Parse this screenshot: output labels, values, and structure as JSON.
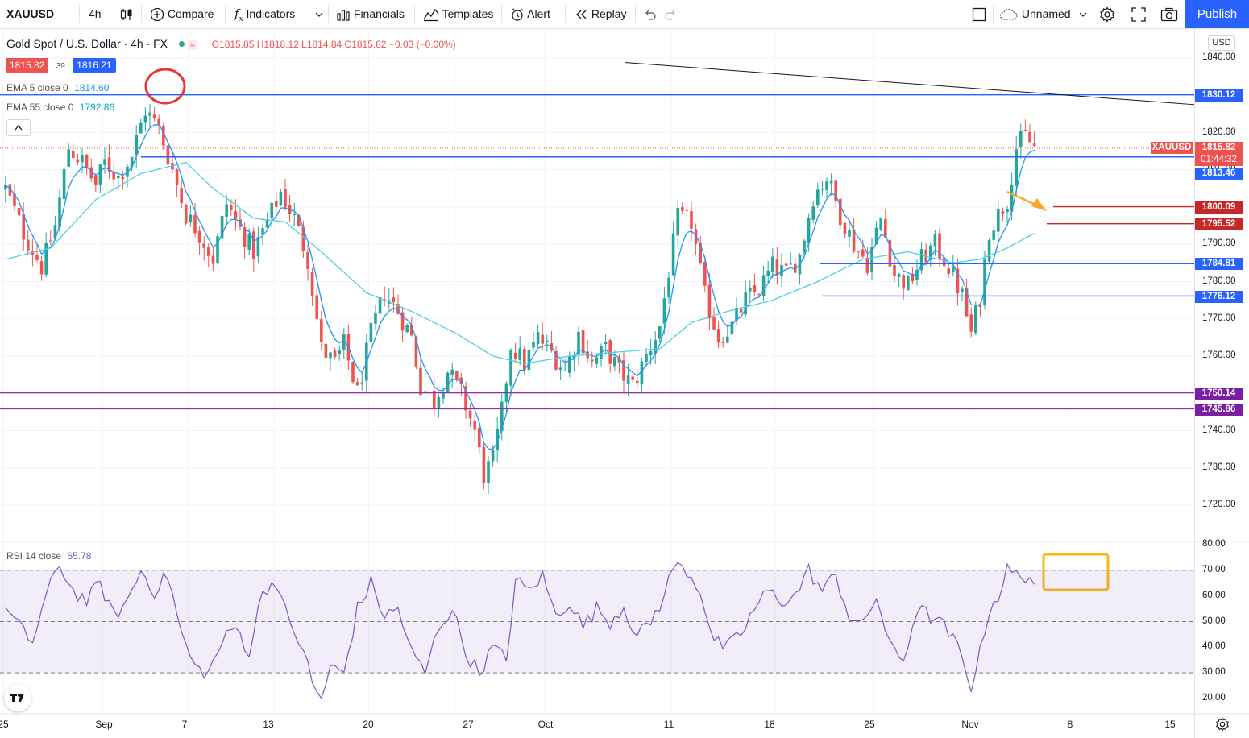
{
  "toolbar": {
    "symbol": "XAUUSD",
    "interval": "4h",
    "compare": "Compare",
    "indicators": "Indicators",
    "financials": "Financials",
    "templates": "Templates",
    "alert": "Alert",
    "replay": "Replay",
    "layout_name": "Unnamed",
    "publish": "Publish"
  },
  "legend": {
    "title": "Gold Spot / U.S. Dollar · 4h · FX",
    "open": "O1815.85",
    "high": "H1818.12",
    "low": "L1814.84",
    "close": "C1815.82",
    "change": "−0.03 (−0.00%)",
    "bid": "1815.82",
    "spread": "39",
    "ask": "1816.21",
    "ema5_label": "EMA 5 close 0",
    "ema5_value": "1814.60",
    "ema55_label": "EMA 55 close 0",
    "ema55_value": "1792.86",
    "rsi_label": "RSI 14 close",
    "rsi_value": "65.78",
    "currency": "USD"
  },
  "price_labels": {
    "lvl_1830": "1830.12",
    "xauusd_tag": "XAUUSD",
    "last_price": "1815.82",
    "countdown": "01:44:32",
    "lvl_1813": "1813.46",
    "lvl_1800": "1800.09",
    "lvl_1795": "1795.52",
    "lvl_1784": "1784.81",
    "lvl_1776": "1776.12",
    "lvl_1750": "1750.14",
    "lvl_1745": "1745.86"
  },
  "colors": {
    "up": "#26a69a",
    "down": "#ef5350",
    "ema5": "#2196f3",
    "ema55": "#4dd0e1",
    "rsi": "#7e57c2",
    "blue_level": "#2962ff",
    "red_level": "#c62828",
    "purple_level": "#9c27b0"
  },
  "chart_data": [
    {
      "type": "candlestick",
      "symbol": "XAUUSD",
      "interval": "4h",
      "ylim": [
        1715,
        1845
      ],
      "y_ticks": [
        1840,
        1830,
        1820,
        1810,
        1800,
        1790,
        1780,
        1770,
        1760,
        1750,
        1740,
        1730,
        1720
      ],
      "y_tick_labels": [
        "1840.00",
        "1830.00",
        "1820.00",
        "1810.00",
        "1800.00",
        "1790.00",
        "1780.00",
        "1770.00",
        "1760.00",
        "1750.00",
        "1740.00",
        "1730.00",
        "1720.00"
      ],
      "x_tick_labels": [
        "25",
        "Sep",
        "7",
        "13",
        "20",
        "27",
        "Oct",
        "11",
        "18",
        "25",
        "Nov",
        "8",
        "15"
      ],
      "close_path": [
        [
          0,
          1805
        ],
        [
          4,
          1793
        ],
        [
          8,
          1784
        ],
        [
          11,
          1795
        ],
        [
          14,
          1816
        ],
        [
          17,
          1812
        ],
        [
          20,
          1806
        ],
        [
          22,
          1812
        ],
        [
          25,
          1808
        ],
        [
          28,
          1814
        ],
        [
          31,
          1826
        ],
        [
          34,
          1821
        ],
        [
          37,
          1810
        ],
        [
          40,
          1798
        ],
        [
          43,
          1793
        ],
        [
          46,
          1786
        ],
        [
          49,
          1801
        ],
        [
          52,
          1794
        ],
        [
          55,
          1788
        ],
        [
          58,
          1796
        ],
        [
          61,
          1804
        ],
        [
          64,
          1797
        ],
        [
          67,
          1786
        ],
        [
          70,
          1762
        ],
        [
          73,
          1758
        ],
        [
          75,
          1763
        ],
        [
          78,
          1750
        ],
        [
          81,
          1766
        ],
        [
          84,
          1777
        ],
        [
          87,
          1772
        ],
        [
          90,
          1765
        ],
        [
          92,
          1752
        ],
        [
          95,
          1748
        ],
        [
          98,
          1756
        ],
        [
          101,
          1750
        ],
        [
          104,
          1740
        ],
        [
          106,
          1728
        ],
        [
          108,
          1732
        ],
        [
          110,
          1745
        ],
        [
          112,
          1763
        ],
        [
          115,
          1758
        ],
        [
          118,
          1765
        ],
        [
          121,
          1761
        ],
        [
          124,
          1756
        ],
        [
          127,
          1766
        ],
        [
          130,
          1758
        ],
        [
          133,
          1762
        ],
        [
          136,
          1756
        ],
        [
          139,
          1752
        ],
        [
          142,
          1760
        ],
        [
          145,
          1768
        ],
        [
          147,
          1783
        ],
        [
          149,
          1797
        ],
        [
          152,
          1796
        ],
        [
          155,
          1776
        ],
        [
          158,
          1765
        ],
        [
          161,
          1768
        ],
        [
          164,
          1775
        ],
        [
          167,
          1778
        ],
        [
          170,
          1784
        ],
        [
          173,
          1782
        ],
        [
          176,
          1787
        ],
        [
          179,
          1803
        ],
        [
          182,
          1808
        ],
        [
          185,
          1798
        ],
        [
          188,
          1790
        ],
        [
          191,
          1785
        ],
        [
          194,
          1797
        ],
        [
          197,
          1782
        ],
        [
          200,
          1779
        ],
        [
          203,
          1786
        ],
        [
          206,
          1790
        ],
        [
          209,
          1784
        ],
        [
          212,
          1776
        ],
        [
          214,
          1766
        ],
        [
          216,
          1776
        ],
        [
          218,
          1794
        ],
        [
          220,
          1798
        ],
        [
          222,
          1802
        ],
        [
          224,
          1816
        ],
        [
          226,
          1819
        ],
        [
          228,
          1816
        ]
      ],
      "ema5_label": "EMA 5 close 0",
      "ema55_label": "EMA 55 close 0",
      "ema55_path": [
        [
          0,
          1786
        ],
        [
          10,
          1789
        ],
        [
          20,
          1802
        ],
        [
          30,
          1809
        ],
        [
          40,
          1812
        ],
        [
          46,
          1805
        ],
        [
          55,
          1797
        ],
        [
          62,
          1796
        ],
        [
          70,
          1788
        ],
        [
          80,
          1777
        ],
        [
          90,
          1772
        ],
        [
          100,
          1766
        ],
        [
          108,
          1760
        ],
        [
          115,
          1758
        ],
        [
          125,
          1760
        ],
        [
          135,
          1761
        ],
        [
          145,
          1762
        ],
        [
          152,
          1769
        ],
        [
          160,
          1772
        ],
        [
          170,
          1775
        ],
        [
          180,
          1780
        ],
        [
          190,
          1786
        ],
        [
          200,
          1788
        ],
        [
          210,
          1785
        ],
        [
          216,
          1786
        ],
        [
          222,
          1789
        ],
        [
          228,
          1793
        ]
      ],
      "horizontal_levels": [
        {
          "price": 1830.12,
          "label": "1830.12",
          "color": "#2962ff"
        },
        {
          "price": 1813.46,
          "label": "1813.46",
          "color": "#2962ff"
        },
        {
          "price": 1800.09,
          "label": "1800.09",
          "color": "#c62828"
        },
        {
          "price": 1795.52,
          "label": "1795.52",
          "color": "#c62828"
        },
        {
          "price": 1784.81,
          "label": "1784.81",
          "color": "#2962ff"
        },
        {
          "price": 1776.12,
          "label": "1776.12",
          "color": "#2962ff"
        },
        {
          "price": 1750.14,
          "label": "1750.14",
          "color": "#9c27b0"
        },
        {
          "price": 1745.86,
          "label": "1745.86",
          "color": "#9c27b0"
        }
      ],
      "trendline": {
        "from_price": 1838.8,
        "to_price": 1827.5,
        "color": "#131722"
      },
      "last_price": 1815.82
    },
    {
      "type": "line",
      "name": "RSI 14 close",
      "ylim": [
        15,
        82
      ],
      "y_ticks": [
        80,
        70,
        60,
        50,
        40,
        30,
        20
      ],
      "y_tick_labels": [
        "80.00",
        "70.00",
        "60.00",
        "50.00",
        "40.00",
        "30.00",
        "20.00"
      ],
      "band": [
        30,
        70
      ],
      "last_value": 65.78,
      "path": [
        [
          0,
          55
        ],
        [
          3,
          48
        ],
        [
          6,
          42
        ],
        [
          9,
          60
        ],
        [
          12,
          72
        ],
        [
          15,
          62
        ],
        [
          18,
          58
        ],
        [
          21,
          65
        ],
        [
          24,
          52
        ],
        [
          27,
          58
        ],
        [
          30,
          70
        ],
        [
          33,
          62
        ],
        [
          36,
          68
        ],
        [
          39,
          45
        ],
        [
          42,
          32
        ],
        [
          45,
          30
        ],
        [
          48,
          42
        ],
        [
          51,
          48
        ],
        [
          54,
          38
        ],
        [
          57,
          62
        ],
        [
          60,
          66
        ],
        [
          63,
          48
        ],
        [
          66,
          40
        ],
        [
          68,
          25
        ],
        [
          70,
          20
        ],
        [
          72,
          32
        ],
        [
          75,
          30
        ],
        [
          78,
          55
        ],
        [
          81,
          65
        ],
        [
          84,
          52
        ],
        [
          87,
          55
        ],
        [
          90,
          38
        ],
        [
          93,
          30
        ],
        [
          96,
          48
        ],
        [
          99,
          55
        ],
        [
          102,
          38
        ],
        [
          105,
          30
        ],
        [
          108,
          40
        ],
        [
          111,
          35
        ],
        [
          113,
          66
        ],
        [
          116,
          62
        ],
        [
          119,
          68
        ],
        [
          122,
          52
        ],
        [
          125,
          58
        ],
        [
          128,
          48
        ],
        [
          131,
          55
        ],
        [
          134,
          50
        ],
        [
          137,
          56
        ],
        [
          140,
          44
        ],
        [
          143,
          50
        ],
        [
          146,
          60
        ],
        [
          148,
          72
        ],
        [
          151,
          70
        ],
        [
          154,
          62
        ],
        [
          157,
          42
        ],
        [
          160,
          40
        ],
        [
          163,
          45
        ],
        [
          166,
          55
        ],
        [
          169,
          62
        ],
        [
          172,
          58
        ],
        [
          175,
          60
        ],
        [
          178,
          70
        ],
        [
          181,
          62
        ],
        [
          184,
          68
        ],
        [
          187,
          52
        ],
        [
          190,
          48
        ],
        [
          193,
          60
        ],
        [
          196,
          40
        ],
        [
          199,
          35
        ],
        [
          202,
          55
        ],
        [
          205,
          52
        ],
        [
          208,
          48
        ],
        [
          211,
          40
        ],
        [
          214,
          25
        ],
        [
          216,
          38
        ],
        [
          218,
          55
        ],
        [
          220,
          60
        ],
        [
          222,
          70
        ],
        [
          224,
          68
        ],
        [
          226,
          68
        ],
        [
          228,
          66
        ]
      ]
    }
  ]
}
